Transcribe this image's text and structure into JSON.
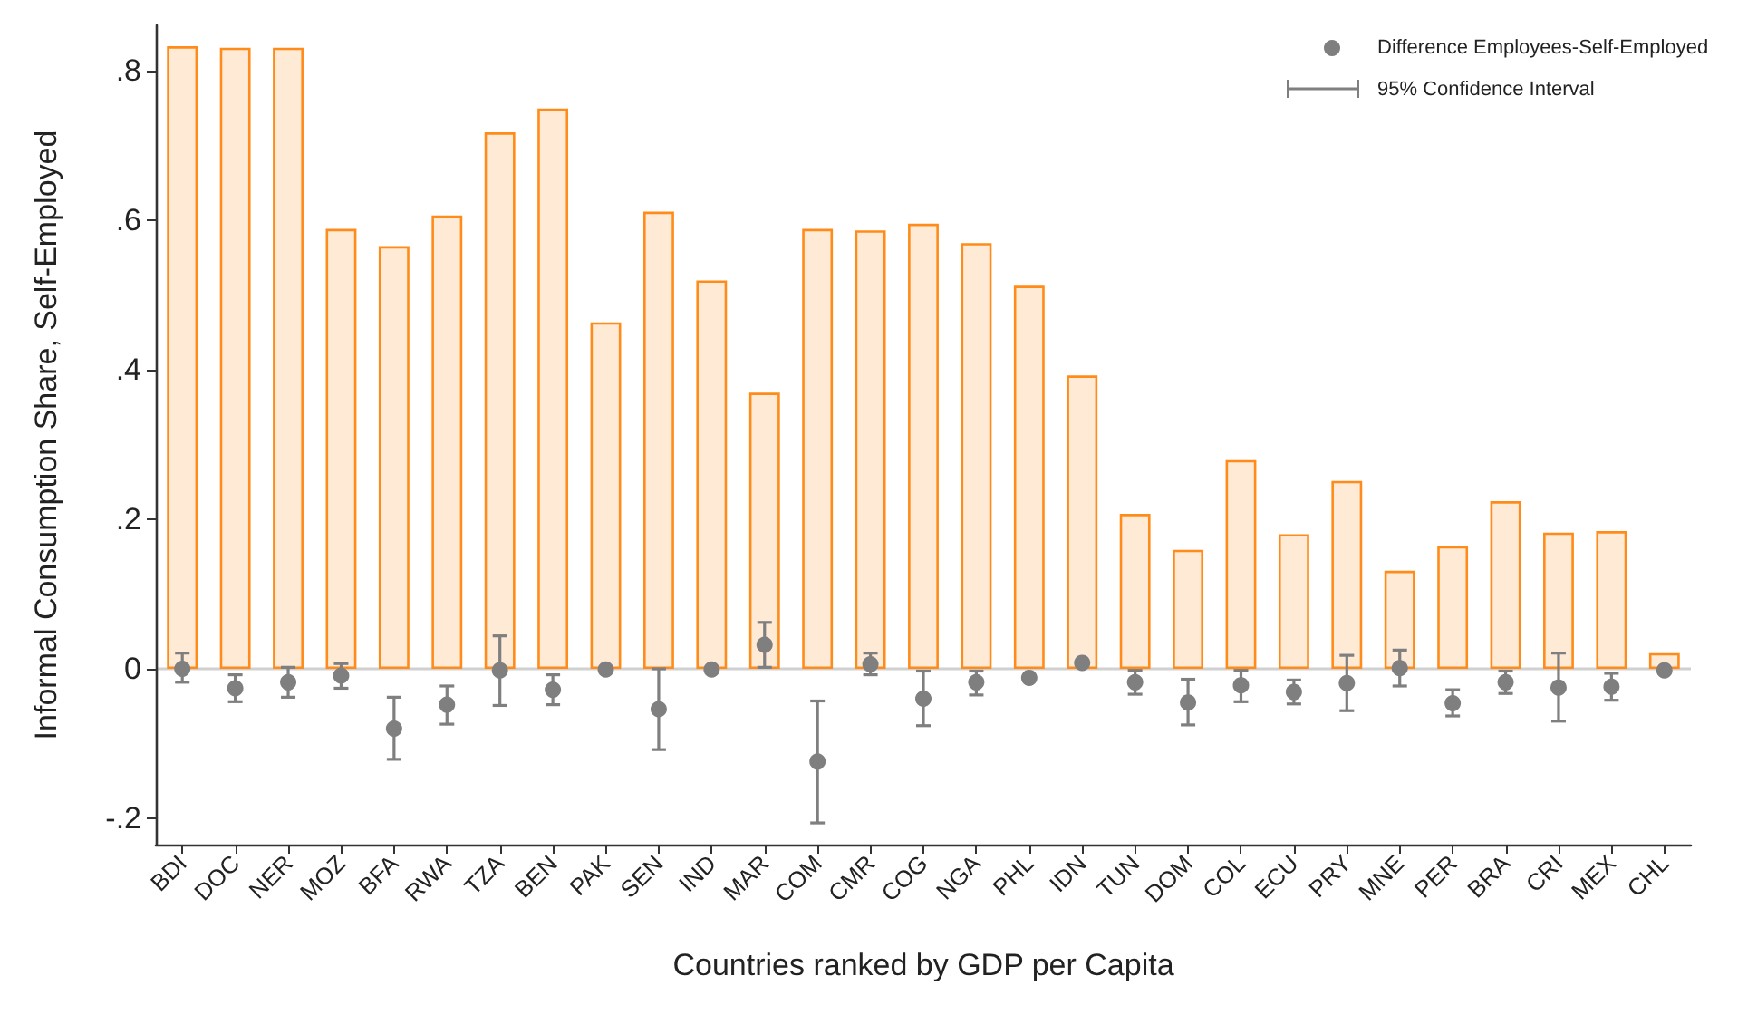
{
  "chart_data": {
    "type": "bar",
    "xlabel": "Countries ranked by GDP per Capita",
    "ylabel": "Informal Consumption Share, Self-Employed",
    "categories": [
      "BDI",
      "DOC",
      "NER",
      "MOZ",
      "BFA",
      "RWA",
      "TZA",
      "BEN",
      "PAK",
      "SEN",
      "IND",
      "MAR",
      "COM",
      "CMR",
      "COG",
      "NGA",
      "PHL",
      "IDN",
      "TUN",
      "DOM",
      "COL",
      "ECU",
      "PRY",
      "MNE",
      "PER",
      "BRA",
      "CRI",
      "MEX",
      "CHL"
    ],
    "series": [
      {
        "type": "bar",
        "color": "#ff8c1a",
        "values": [
          0.832,
          0.83,
          0.83,
          0.588,
          0.565,
          0.606,
          0.717,
          0.749,
          0.463,
          0.611,
          0.519,
          0.369,
          0.588,
          0.586,
          0.595,
          0.569,
          0.512,
          0.392,
          0.207,
          0.159,
          0.279,
          0.18,
          0.251,
          0.131,
          0.164,
          0.224,
          0.182,
          0.184,
          0.021
        ]
      },
      {
        "type": "scatter",
        "name": "Difference Employees-Self-Employed",
        "color": "#7f7f7f",
        "x": [
          "BDI",
          "DOC",
          "NER",
          "MOZ",
          "BFA",
          "RWA",
          "TZA",
          "BEN",
          "PAK",
          "SEN",
          "IND",
          "MAR",
          "COM",
          "CMR",
          "COG",
          "NGA",
          "PHL",
          "IDN",
          "TUN",
          "DOM",
          "COL",
          "ECU",
          "PRY",
          "MNE",
          "PER",
          "BRA",
          "CRI",
          "MEX",
          "CHL"
        ],
        "values": [
          0.0,
          -0.026,
          -0.018,
          -0.009,
          -0.08,
          -0.048,
          -0.002,
          -0.028,
          -0.001,
          -0.054,
          -0.001,
          0.032,
          -0.124,
          0.006,
          -0.04,
          -0.018,
          -0.012,
          0.008,
          -0.018,
          -0.045,
          -0.022,
          -0.031,
          -0.019,
          0.001,
          -0.046,
          -0.018,
          -0.025,
          -0.024,
          -0.002
        ],
        "errors": [
          [
            -0.018,
            0.021
          ],
          [
            -0.044,
            -0.008
          ],
          [
            -0.038,
            0.002
          ],
          [
            -0.026,
            0.007
          ],
          [
            -0.121,
            -0.038
          ],
          [
            -0.074,
            -0.023
          ],
          [
            -0.049,
            0.044
          ],
          [
            -0.048,
            -0.008
          ],
          null,
          [
            -0.108,
            0.0
          ],
          null,
          [
            0.002,
            0.062
          ],
          [
            -0.206,
            -0.043
          ],
          [
            -0.008,
            0.021
          ],
          [
            -0.076,
            -0.003
          ],
          [
            -0.035,
            -0.003
          ],
          null,
          null,
          [
            -0.034,
            -0.002
          ],
          [
            -0.075,
            -0.014
          ],
          [
            -0.044,
            -0.002
          ],
          [
            -0.047,
            -0.015
          ],
          [
            -0.056,
            0.018
          ],
          [
            -0.023,
            0.025
          ],
          [
            -0.063,
            -0.028
          ],
          [
            -0.033,
            -0.003
          ],
          [
            -0.07,
            0.021
          ],
          [
            -0.042,
            -0.006
          ],
          null
        ]
      }
    ],
    "annotations": [
      "95% Confidence Interval"
    ],
    "ylim": [
      -0.235,
      0.86
    ],
    "yticks": [
      {
        "value": -0.2,
        "label": "-.2"
      },
      {
        "value": 0,
        "label": "0"
      },
      {
        "value": 0.2,
        "label": ".2"
      },
      {
        "value": 0.4,
        "label": ".4"
      },
      {
        "value": 0.6,
        "label": ".6"
      },
      {
        "value": 0.8,
        "label": ".8"
      }
    ],
    "ref_lines": [
      {
        "axis": "y",
        "value": 0,
        "label": null,
        "color": "#d0d0d0"
      }
    ],
    "grid": false,
    "legend": "top right",
    "marker": "circle"
  }
}
